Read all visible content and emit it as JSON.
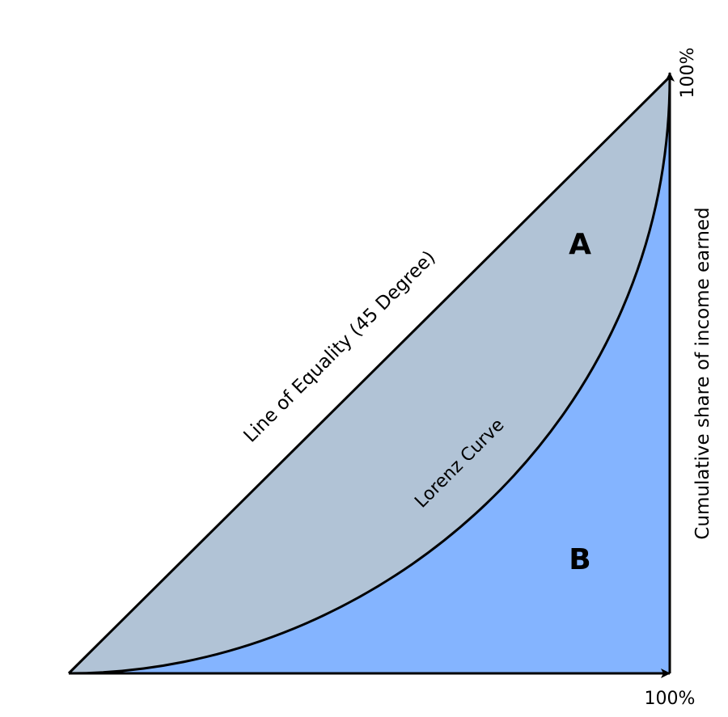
{
  "labels": {
    "line_of_equality": "Line of Equality (45 Degree)",
    "lorenz_curve": "Lorenz Curve",
    "region_a": "A",
    "region_b": "B",
    "y_axis_title": "Cumulative share of income earned",
    "x_axis_max": "100%",
    "y_axis_max": "100%"
  },
  "colors": {
    "region_a_fill": "#b1c3d6",
    "region_b_fill": "#84b4ff",
    "stroke": "#000000"
  }
}
